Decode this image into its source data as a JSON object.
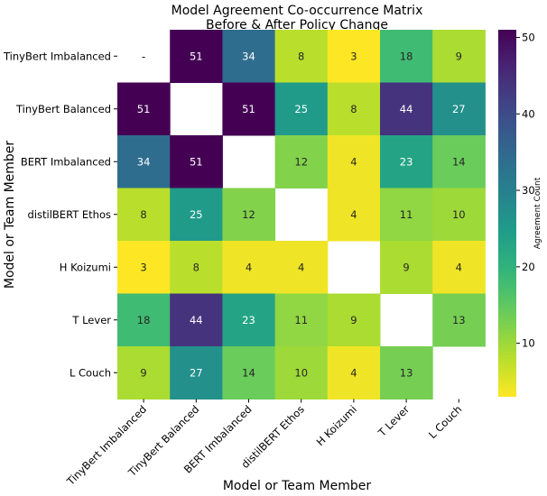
{
  "chart_data": {
    "type": "heatmap",
    "title_lines": [
      "Model Agreement Co-occurrence Matrix",
      "Before & After Policy Change"
    ],
    "xlabel": "Model or Team Member",
    "ylabel": "Model or Team Member",
    "row_labels": [
      "TinyBert Imbalanced",
      "TinyBert Balanced",
      "BERT Imbalanced",
      "distilBERT Ethos",
      "H Koizumi",
      "T Lever",
      "L Couch"
    ],
    "col_labels": [
      "TinyBert Imbalanced",
      "TinyBert Balanced",
      "BERT Imbalanced",
      "distilBERT Ethos",
      "H Koizumi",
      "T Lever",
      "L Couch"
    ],
    "values": [
      [
        null,
        51,
        34,
        8,
        3,
        18,
        9
      ],
      [
        51,
        null,
        51,
        25,
        8,
        44,
        27
      ],
      [
        34,
        51,
        null,
        12,
        4,
        23,
        14
      ],
      [
        8,
        25,
        12,
        null,
        4,
        11,
        10
      ],
      [
        3,
        8,
        4,
        4,
        null,
        9,
        4
      ],
      [
        18,
        44,
        23,
        11,
        9,
        null,
        13
      ],
      [
        9,
        27,
        14,
        10,
        4,
        13,
        null
      ]
    ],
    "diagonal_label": "-",
    "colorbar": {
      "label": "Agreement Count",
      "range": [
        3,
        51
      ],
      "ticks": [
        10,
        20,
        30,
        40,
        50
      ],
      "colormap": "viridis_r"
    }
  }
}
